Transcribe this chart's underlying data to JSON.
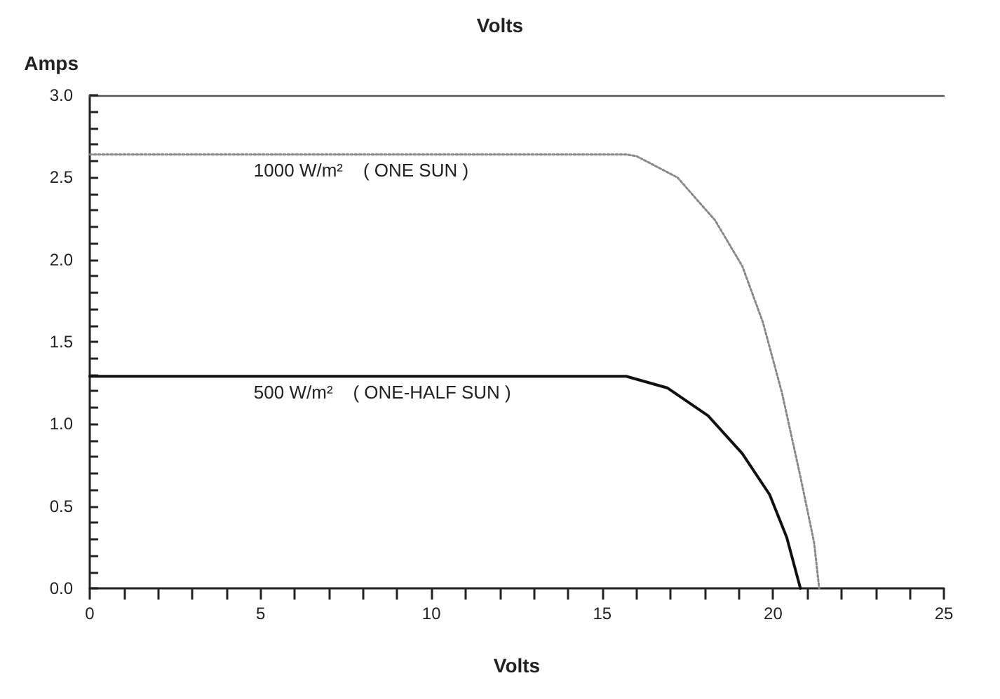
{
  "chart_data": {
    "type": "line",
    "title": "Volts",
    "xlabel": "Volts",
    "ylabel": "Amps",
    "xlim": [
      0,
      25
    ],
    "xticks": [
      {
        "value": 0,
        "label": "0"
      },
      {
        "value": 1,
        "label": null
      },
      {
        "value": 2,
        "label": null
      },
      {
        "value": 3,
        "label": null
      },
      {
        "value": 4,
        "label": null
      },
      {
        "value": 5,
        "label": "5"
      },
      {
        "value": 6,
        "label": null
      },
      {
        "value": 7,
        "label": null
      },
      {
        "value": 8,
        "label": null
      },
      {
        "value": 9,
        "label": null
      },
      {
        "value": 10,
        "label": "10"
      },
      {
        "value": 11,
        "label": null
      },
      {
        "value": 12,
        "label": null
      },
      {
        "value": 13,
        "label": null
      },
      {
        "value": 14,
        "label": null
      },
      {
        "value": 15,
        "label": "15"
      },
      {
        "value": 16,
        "label": null
      },
      {
        "value": 17,
        "label": null
      },
      {
        "value": 18,
        "label": null
      },
      {
        "value": 19,
        "label": null
      },
      {
        "value": 20,
        "label": "20"
      },
      {
        "value": 21,
        "label": null
      },
      {
        "value": 22,
        "label": null
      },
      {
        "value": 23,
        "label": null
      },
      {
        "value": 24,
        "label": null
      },
      {
        "value": 25,
        "label": "25"
      }
    ],
    "ylim": [
      0,
      3
    ],
    "yticks": [
      {
        "value": 0,
        "label": "0.0"
      },
      {
        "value": 0.1,
        "label": null
      },
      {
        "value": 0.2,
        "label": null
      },
      {
        "value": 0.3,
        "label": null
      },
      {
        "value": 0.4,
        "label": null
      },
      {
        "value": 0.5,
        "label": "0.5"
      },
      {
        "value": 0.6,
        "label": null
      },
      {
        "value": 0.7,
        "label": null
      },
      {
        "value": 0.8,
        "label": null
      },
      {
        "value": 0.9,
        "label": null
      },
      {
        "value": 1,
        "label": "1.0"
      },
      {
        "value": 1.1,
        "label": null
      },
      {
        "value": 1.2,
        "label": null
      },
      {
        "value": 1.3,
        "label": null
      },
      {
        "value": 1.4,
        "label": null
      },
      {
        "value": 1.5,
        "label": "1.5"
      },
      {
        "value": 1.6,
        "label": null
      },
      {
        "value": 1.7,
        "label": null
      },
      {
        "value": 1.8,
        "label": null
      },
      {
        "value": 1.9,
        "label": null
      },
      {
        "value": 2,
        "label": "2.0"
      },
      {
        "value": 2.1,
        "label": null
      },
      {
        "value": 2.2,
        "label": null
      },
      {
        "value": 2.3,
        "label": null
      },
      {
        "value": 2.4,
        "label": null
      },
      {
        "value": 2.5,
        "label": "2.5"
      },
      {
        "value": 2.6,
        "label": null
      },
      {
        "value": 2.7,
        "label": null
      },
      {
        "value": 2.8,
        "label": null
      },
      {
        "value": 2.9,
        "label": null
      },
      {
        "value": 3,
        "label": "3.0"
      }
    ],
    "grid": false,
    "legend": false,
    "marker": "none",
    "series": [
      {
        "name": "1000 W/m²    ( ONE SUN )",
        "color": "#888888",
        "line_style": "dotted",
        "x": [
          0,
          15.7,
          16.0,
          17.2,
          18.3,
          19.1,
          19.7,
          20.26,
          20.8,
          21.2,
          21.35
        ],
        "values": [
          2.64,
          2.64,
          2.63,
          2.5,
          2.24,
          1.96,
          1.62,
          1.19,
          0.68,
          0.28,
          0
        ]
      },
      {
        "name": "500 W/m²    ( ONE-HALF SUN )",
        "color": "#111111",
        "line_style": "solid",
        "x": [
          0,
          15.7,
          16.9,
          18.1,
          19.1,
          19.9,
          20.4,
          20.8
        ],
        "values": [
          1.29,
          1.29,
          1.22,
          1.05,
          0.82,
          0.57,
          0.31,
          0
        ]
      }
    ]
  }
}
